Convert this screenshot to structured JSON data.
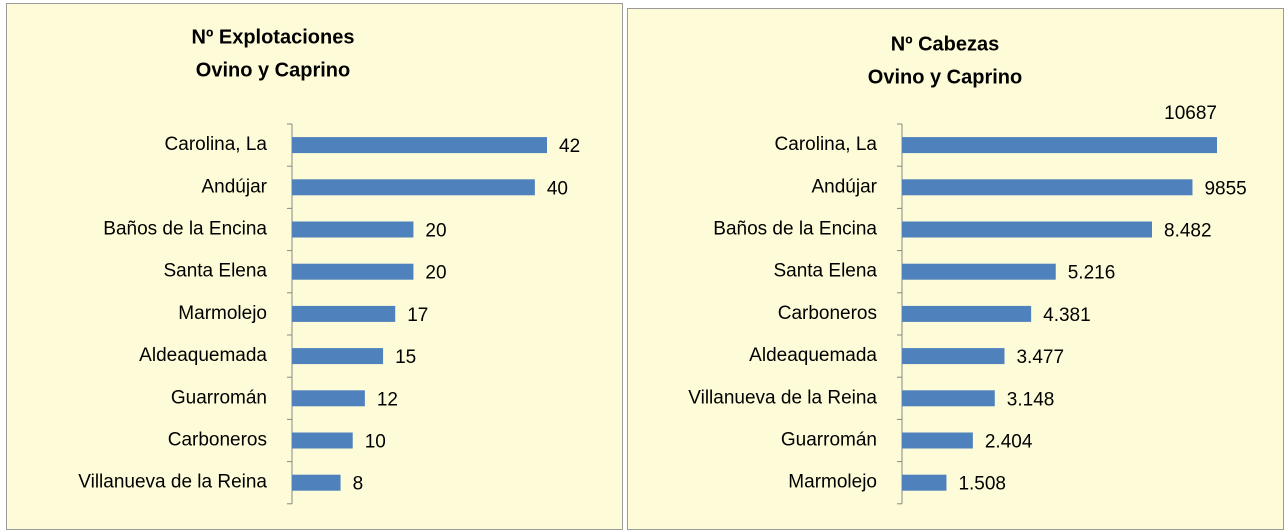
{
  "chart_data": [
    {
      "type": "bar",
      "orientation": "horizontal",
      "title": [
        "Nº Explotaciones",
        "Ovino y Caprino"
      ],
      "categories": [
        "Carolina, La",
        "Andújar",
        "Baños de la Encina",
        "Santa Elena",
        "Marmolejo",
        "Aldeaquemada",
        "Guarromán",
        "Carboneros",
        "Villanueva de la Reina"
      ],
      "values": [
        42,
        40,
        20,
        20,
        17,
        15,
        12,
        10,
        8
      ],
      "color": "#4f81bd",
      "background": "#fefcd8"
    },
    {
      "type": "bar",
      "orientation": "horizontal",
      "title": [
        "Nº Cabezas",
        "Ovino y Caprino"
      ],
      "categories": [
        "Carolina, La",
        "Andújar",
        "Baños de la Encina",
        "Santa Elena",
        "Carboneros",
        "Aldeaquemada",
        "Villanueva de la Reina",
        "Guarromán",
        "Marmolejo"
      ],
      "values": [
        10687,
        9855,
        8482,
        5216,
        4381,
        3477,
        3148,
        2404,
        1508
      ],
      "value_labels": [
        "10687",
        "9855",
        "8.482",
        "5.216",
        "4.381",
        "3.477",
        "3.148",
        "2.404",
        "1.508"
      ],
      "color": "#4f81bd",
      "background": "#fefcd8"
    }
  ]
}
